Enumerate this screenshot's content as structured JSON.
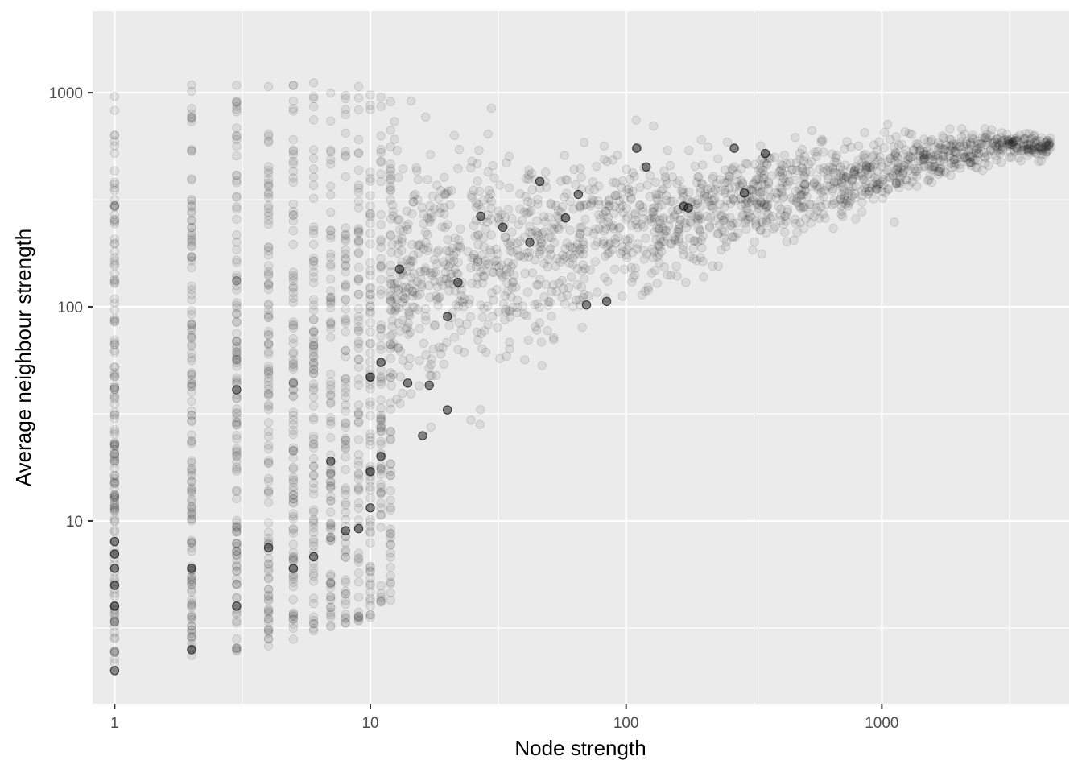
{
  "chart_data": {
    "type": "scatter",
    "title": "",
    "xlabel": "Node strength",
    "ylabel": "Average neighbour strength",
    "x_scale": "log10",
    "y_scale": "log10",
    "xlim": [
      0.82,
      5400
    ],
    "ylim": [
      1.4,
      2400
    ],
    "x_ticks": [
      1,
      10,
      100,
      1000
    ],
    "x_tick_labels": [
      "1",
      "10",
      "100",
      "1000"
    ],
    "y_ticks": [
      10,
      100,
      1000
    ],
    "y_tick_labels": [
      "10",
      "100",
      "1000"
    ],
    "grid": true,
    "legend": "none",
    "point_color": "#000000",
    "point_opacity": 0.07,
    "panel_background": "#ebebeb",
    "gridline_color": "#ffffff",
    "highlighted_points": [
      {
        "x": 1,
        "y": 2
      },
      {
        "x": 1,
        "y": 4
      },
      {
        "x": 1,
        "y": 5
      },
      {
        "x": 1,
        "y": 6
      },
      {
        "x": 1,
        "y": 7
      },
      {
        "x": 1,
        "y": 8
      },
      {
        "x": 2,
        "y": 2.5
      },
      {
        "x": 2,
        "y": 6
      },
      {
        "x": 3,
        "y": 4
      },
      {
        "x": 3,
        "y": 41
      },
      {
        "x": 4,
        "y": 7.5
      },
      {
        "x": 5,
        "y": 6
      },
      {
        "x": 6,
        "y": 6.8
      },
      {
        "x": 7,
        "y": 19
      },
      {
        "x": 8,
        "y": 9
      },
      {
        "x": 9,
        "y": 9.2
      },
      {
        "x": 10,
        "y": 11.5
      },
      {
        "x": 10,
        "y": 17
      },
      {
        "x": 11,
        "y": 20
      },
      {
        "x": 10,
        "y": 47
      },
      {
        "x": 11,
        "y": 55
      },
      {
        "x": 14,
        "y": 44
      },
      {
        "x": 17,
        "y": 43
      },
      {
        "x": 16,
        "y": 25
      },
      {
        "x": 20,
        "y": 33
      },
      {
        "x": 13,
        "y": 150
      },
      {
        "x": 20,
        "y": 90
      },
      {
        "x": 22,
        "y": 130
      },
      {
        "x": 27,
        "y": 265
      },
      {
        "x": 33,
        "y": 235
      },
      {
        "x": 42,
        "y": 200
      },
      {
        "x": 46,
        "y": 385
      },
      {
        "x": 58,
        "y": 260
      },
      {
        "x": 65,
        "y": 335
      },
      {
        "x": 70,
        "y": 102
      },
      {
        "x": 84,
        "y": 106
      },
      {
        "x": 110,
        "y": 550
      },
      {
        "x": 120,
        "y": 450
      },
      {
        "x": 168,
        "y": 295
      },
      {
        "x": 175,
        "y": 290
      },
      {
        "x": 265,
        "y": 550
      },
      {
        "x": 290,
        "y": 340
      },
      {
        "x": 350,
        "y": 520
      }
    ]
  }
}
